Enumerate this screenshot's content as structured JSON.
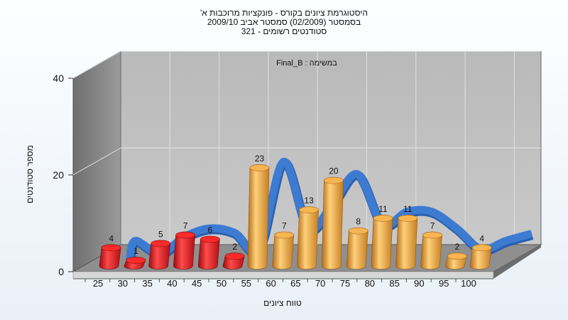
{
  "chart_data": {
    "type": "bar",
    "title_lines": [
      "היסטוגרמת ציונים בקורס - פונקציות מרוכבות א'",
      "בסמסטר  (02/2009)  סמסטר אביב 2009/10",
      "סטודנטים רשומים - 321"
    ],
    "annotation": "במשימה : Final_B",
    "xlabel": "טווח ציונים",
    "ylabel": "מספר סטודנטים",
    "ylim": [
      0,
      40
    ],
    "y_ticks": [
      "0",
      "20",
      "40"
    ],
    "categories": [
      "25",
      "30",
      "35",
      "40",
      "45",
      "50",
      "55",
      "60",
      "65",
      "70",
      "75",
      "80",
      "85",
      "90",
      "95",
      "100"
    ],
    "values": [
      4,
      1,
      5,
      7,
      6,
      2,
      23,
      7,
      13,
      20,
      8,
      11,
      11,
      7,
      2,
      4
    ],
    "bar_colors": [
      "#e0191f",
      "#e0191f",
      "#e0191f",
      "#e0191f",
      "#e0191f",
      "#e0191f",
      "#f0a545",
      "#f0a545",
      "#f0a545",
      "#f0a545",
      "#f0a545",
      "#f0a545",
      "#f0a545",
      "#f0a545",
      "#f0a545",
      "#f0a545"
    ],
    "curve_color": "#3d7bd1",
    "grid": true
  }
}
